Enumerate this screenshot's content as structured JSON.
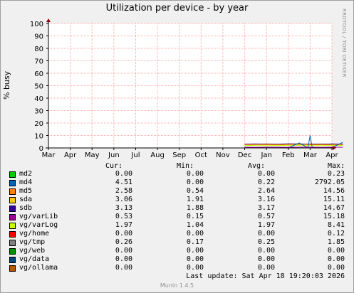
{
  "title": "Utilization per device - by year",
  "side_text": "RRDTOOL / TOBI OETIKER",
  "footer": "Munin 1.4.5",
  "last_update": "Last update:  Sat Apr 18 19:20:03 2026",
  "legend_headers": {
    "cur": "Cur:",
    "min": "Min:",
    "avg": "Avg:",
    "max": "Max:"
  },
  "legend": [
    {
      "name": "md2",
      "color": "#00cc00",
      "cur": "0.00",
      "min": "0.00",
      "avg": "0.00",
      "max": "0.23"
    },
    {
      "name": "md4",
      "color": "#0066b3",
      "cur": "4.51",
      "min": "0.00",
      "avg": "0.22",
      "max": "2792.05"
    },
    {
      "name": "md5",
      "color": "#ff8000",
      "cur": "2.58",
      "min": "0.54",
      "avg": "2.64",
      "max": "14.56"
    },
    {
      "name": "sda",
      "color": "#ffcc00",
      "cur": "3.06",
      "min": "1.91",
      "avg": "3.16",
      "max": "15.11"
    },
    {
      "name": "sdb",
      "color": "#330099",
      "cur": "3.13",
      "min": "1.88",
      "avg": "3.17",
      "max": "14.67"
    },
    {
      "name": "vg/varLib",
      "color": "#990099",
      "cur": "0.53",
      "min": "0.15",
      "avg": "0.57",
      "max": "15.18"
    },
    {
      "name": "vg/varLog",
      "color": "#ccff00",
      "cur": "1.97",
      "min": "1.04",
      "avg": "1.97",
      "max": "8.41"
    },
    {
      "name": "vg/home",
      "color": "#ff0000",
      "cur": "0.00",
      "min": "0.00",
      "avg": "0.00",
      "max": "0.12"
    },
    {
      "name": "vg/tmp",
      "color": "#808080",
      "cur": "0.26",
      "min": "0.17",
      "avg": "0.25",
      "max": "1.85"
    },
    {
      "name": "vg/web",
      "color": "#008f00",
      "cur": "0.00",
      "min": "0.00",
      "avg": "0.00",
      "max": "0.00"
    },
    {
      "name": "vg/data",
      "color": "#00487d",
      "cur": "0.00",
      "min": "0.00",
      "avg": "0.00",
      "max": "0.00"
    },
    {
      "name": "vg/ollama",
      "color": "#b35a00",
      "cur": "0.00",
      "min": "0.00",
      "avg": "0.00",
      "max": "0.00"
    }
  ],
  "chart_data": {
    "type": "line",
    "title": "Utilization per device - by year",
    "ylabel": "% busy",
    "xlabel": "",
    "ylim": [
      0,
      100
    ],
    "yticks": [
      "0",
      "10",
      "20",
      "30",
      "40",
      "50",
      "60",
      "70",
      "80",
      "90",
      "100"
    ],
    "xticks": [
      "Mar",
      "Apr",
      "May",
      "Jun",
      "Jul",
      "Aug",
      "Sep",
      "Oct",
      "Nov",
      "Dec",
      "Jan",
      "Feb",
      "Mar",
      "Apr"
    ],
    "grid": true,
    "series": [
      {
        "name": "sda",
        "x": [
          9.0,
          9.5,
          10.0,
          10.5,
          11.0,
          11.5,
          12.0,
          12.5,
          13.0,
          13.5
        ],
        "values": [
          3.2,
          3.0,
          3.3,
          3.1,
          3.2,
          3.4,
          3.0,
          3.2,
          3.1,
          3.1
        ]
      },
      {
        "name": "sdb",
        "x": [
          9.0,
          9.5,
          10.0,
          10.5,
          11.0,
          11.5,
          12.0,
          12.5,
          13.0,
          13.5
        ],
        "values": [
          3.1,
          3.2,
          3.1,
          3.0,
          3.3,
          3.2,
          3.1,
          3.0,
          3.2,
          3.1
        ]
      },
      {
        "name": "md5",
        "x": [
          9.0,
          9.5,
          10.0,
          10.5,
          11.0,
          11.5,
          12.0,
          12.5,
          13.0,
          13.5
        ],
        "values": [
          2.6,
          2.7,
          2.6,
          2.5,
          2.7,
          2.8,
          2.6,
          2.5,
          2.6,
          2.6
        ]
      },
      {
        "name": "vg/varLog",
        "x": [
          9.0,
          9.5,
          10.0,
          10.5,
          11.0,
          11.5,
          12.0,
          12.5,
          13.0,
          13.5
        ],
        "values": [
          2.0,
          2.0,
          1.9,
          2.0,
          2.0,
          2.1,
          2.0,
          1.9,
          2.0,
          2.0
        ]
      },
      {
        "name": "md4",
        "x": [
          9.0,
          9.5,
          10.0,
          10.5,
          11.0,
          11.5,
          11.9,
          12.0,
          12.1,
          12.5,
          13.0,
          13.5
        ],
        "values": [
          0.2,
          0.2,
          0.2,
          0.2,
          0.2,
          4.0,
          0.2,
          10.0,
          0.2,
          0.2,
          0.2,
          4.5
        ]
      },
      {
        "name": "vg/varLib",
        "x": [
          9.0,
          9.5,
          10.0,
          10.5,
          11.0,
          11.5,
          12.0,
          12.5,
          13.0,
          13.5
        ],
        "values": [
          0.6,
          0.5,
          0.6,
          0.6,
          0.5,
          0.6,
          0.6,
          0.5,
          0.6,
          0.5
        ]
      }
    ]
  }
}
